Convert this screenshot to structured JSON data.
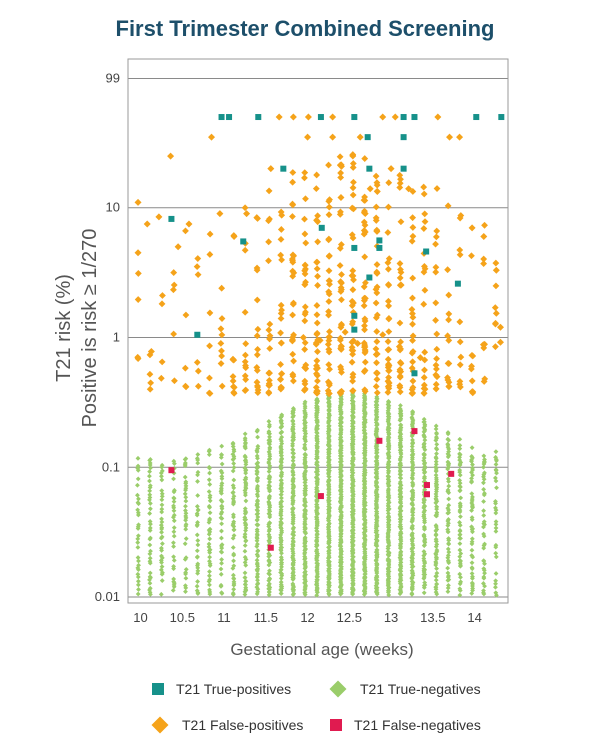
{
  "chart_data": {
    "type": "scatter",
    "title": "First Trimester Combined Screening",
    "xlabel": "Gestational age (weeks)",
    "ylabel_line1": "T21 risk (%)",
    "ylabel_line2": "Positive is risk ≥ 1/270",
    "yscale": "log",
    "xlim": [
      9.85,
      14.4
    ],
    "ylim": [
      0.009,
      140
    ],
    "x_ticks": [
      10,
      10.5,
      11,
      11.5,
      12,
      12.5,
      13,
      13.5,
      14
    ],
    "x_tick_labels": [
      "10",
      "10.5",
      "11",
      "11.5",
      "12",
      "12.5",
      "13",
      "13.5",
      "14"
    ],
    "y_ticks": [
      0.01,
      0.1,
      1,
      10,
      99
    ],
    "y_tick_labels": [
      "0.01",
      "0.1",
      "1",
      "10",
      "99"
    ],
    "grid": "horizontal",
    "legend_position": "bottom",
    "series": [
      {
        "name": "T21 True-positives",
        "marker": "square",
        "color": "#16918a",
        "points": [
          [
            10.37,
            8.2
          ],
          [
            10.68,
            1.05
          ],
          [
            10.97,
            50
          ],
          [
            11.06,
            50
          ],
          [
            11.23,
            5.5
          ],
          [
            11.41,
            50
          ],
          [
            11.71,
            20
          ],
          [
            12.16,
            50
          ],
          [
            12.17,
            7.0
          ],
          [
            12.56,
            50
          ],
          [
            12.56,
            4.9
          ],
          [
            12.56,
            1.15
          ],
          [
            12.56,
            1.47
          ],
          [
            12.72,
            35
          ],
          [
            12.74,
            20
          ],
          [
            12.74,
            2.9
          ],
          [
            12.86,
            5.6
          ],
          [
            12.86,
            4.9
          ],
          [
            13.15,
            50
          ],
          [
            13.15,
            20
          ],
          [
            13.15,
            35
          ],
          [
            13.28,
            50
          ],
          [
            13.28,
            0.53
          ],
          [
            13.42,
            4.6
          ],
          [
            13.8,
            2.6
          ],
          [
            14.02,
            50
          ],
          [
            14.32,
            50
          ]
        ]
      },
      {
        "name": "T21 False-positives",
        "marker": "diamond",
        "color": "#f5a31a",
        "points": [
          [
            9.97,
            11
          ],
          [
            9.97,
            4.5
          ],
          [
            10.08,
            7.5
          ],
          [
            10.13,
            0.78
          ],
          [
            10.22,
            8.5
          ],
          [
            10.36,
            25
          ],
          [
            10.45,
            5.0
          ],
          [
            10.58,
            7.5
          ],
          [
            10.85,
            35
          ],
          [
            10.95,
            9.0
          ],
          [
            11.12,
            6.0
          ],
          [
            11.27,
            9.0
          ],
          [
            11.56,
            20
          ],
          [
            11.66,
            50
          ],
          [
            11.83,
            50
          ],
          [
            12.01,
            50
          ],
          [
            12.3,
            50
          ],
          [
            12.4,
            12
          ],
          [
            12.63,
            35
          ],
          [
            12.9,
            50
          ],
          [
            13.05,
            50
          ],
          [
            13.21,
            14
          ],
          [
            13.56,
            50
          ],
          [
            13.7,
            35
          ],
          [
            13.82,
            35
          ],
          [
            13.97,
            7.0
          ],
          [
            14.11,
            6.0
          ],
          [
            14.26,
            3.3
          ],
          [
            14.31,
            1.2
          ],
          [
            14.31,
            0.92
          ],
          [
            12.0,
            35
          ],
          [
            12.3,
            35
          ],
          [
            12.75,
            14
          ],
          [
            13.0,
            20
          ],
          [
            11.95,
            1.0
          ],
          [
            12.15,
            0.95
          ],
          [
            12.45,
            1.1
          ],
          [
            12.6,
            0.9
          ],
          [
            12.9,
            1.05
          ],
          [
            13.1,
            0.85
          ],
          [
            13.35,
            0.7
          ],
          [
            13.55,
            0.5
          ]
        ]
      },
      {
        "name": "T21 True-negatives",
        "marker": "diamond",
        "color": "#9acd6a",
        "points": []
      },
      {
        "name": "T21 False-negatives",
        "marker": "square",
        "color": "#e01b50",
        "points": [
          [
            10.37,
            0.095
          ],
          [
            11.56,
            0.024
          ],
          [
            12.16,
            0.06
          ],
          [
            12.86,
            0.16
          ],
          [
            13.28,
            0.19
          ],
          [
            13.43,
            0.073
          ],
          [
            13.43,
            0.062
          ],
          [
            13.72,
            0.089
          ]
        ]
      }
    ]
  },
  "legend": [
    {
      "label": "T21 True-positives",
      "marker": "square",
      "color": "#16918a"
    },
    {
      "label": "T21 True-negatives",
      "marker": "diamond",
      "color": "#9acd6a"
    },
    {
      "label": "T21 False-positives",
      "marker": "diamond",
      "color": "#f5a31a"
    },
    {
      "label": "T21 False-negatives",
      "marker": "square",
      "color": "#e01b50"
    }
  ]
}
